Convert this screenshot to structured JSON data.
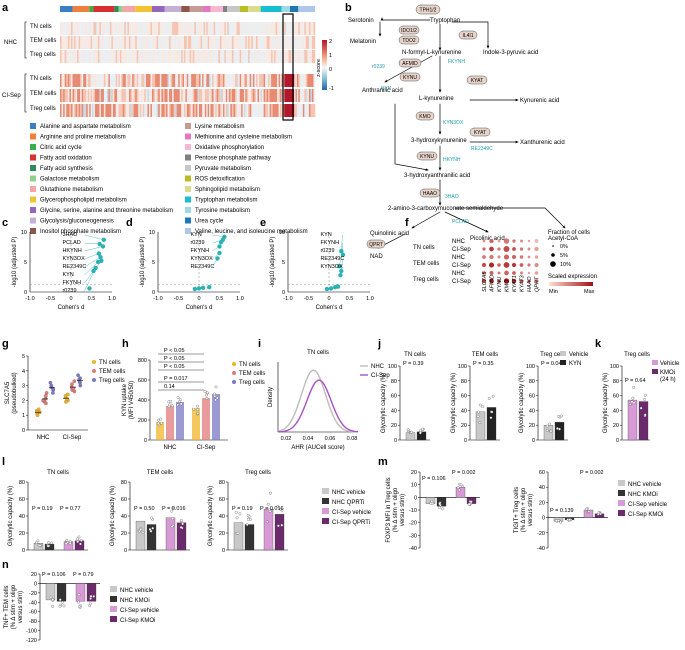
{
  "figure": {
    "panel_letters": [
      "a",
      "b",
      "c",
      "d",
      "e",
      "f",
      "g",
      "h",
      "i",
      "j",
      "k",
      "l",
      "m",
      "n"
    ]
  },
  "panel_a": {
    "row_groups": [
      {
        "name": "NHC",
        "rows": [
          "TN cells",
          "TEM cells",
          "Treg cells"
        ]
      },
      {
        "name": "CI-Sep",
        "rows": [
          "TN cells",
          "TEM cells",
          "Treg cells"
        ]
      }
    ],
    "colorbar_title": "z-score",
    "colorbar_ticks": [
      "2",
      "1",
      "0",
      "-1"
    ],
    "pathways": [
      {
        "label": "Alanine and aspartate metabolism",
        "color": "#3b7fc4"
      },
      {
        "label": "Arginine and proline metabolism",
        "color": "#f0803c"
      },
      {
        "label": "Citric acid cycle",
        "color": "#3cae4b"
      },
      {
        "label": "Fatty acid oxidation",
        "color": "#d7302f"
      },
      {
        "label": "Fatty acid synthesis",
        "color": "#2f8b57"
      },
      {
        "label": "Galactose metabolism",
        "color": "#8fd18a"
      },
      {
        "label": "Glutathione metabolism",
        "color": "#f4a6a6"
      },
      {
        "label": "Glycerophospholipid metabolism",
        "color": "#f1c232"
      },
      {
        "label": "Glycine, serine, alanine and threonine metabolism",
        "color": "#9467bd"
      },
      {
        "label": "Glycolysis/gluconeogenesis",
        "color": "#c5b0d5"
      },
      {
        "label": "Inositol phosphate metabolism",
        "color": "#8c564b"
      },
      {
        "label": "Lysine metabolism",
        "color": "#c49c94"
      },
      {
        "label": "Methionine and cysteine metabolism",
        "color": "#e377c2"
      },
      {
        "label": "Oxidative phosphorylation",
        "color": "#f7b6d2"
      },
      {
        "label": "Pentose phosphate pathway",
        "color": "#7f7f7f"
      },
      {
        "label": "Pyruvate metabolism",
        "color": "#c7c7c7"
      },
      {
        "label": "ROS detoxification",
        "color": "#bcbd22"
      },
      {
        "label": "Sphingolipid metabolism",
        "color": "#dbdb8d"
      },
      {
        "label": "Tryptophan metabolism",
        "color": "#17becf"
      },
      {
        "label": "Tyrosine metabolism",
        "color": "#9edae5"
      },
      {
        "label": "Urea cycle",
        "color": "#1f77b4"
      },
      {
        "label": "Valine, leucine, and isoleucine metabolism",
        "color": "#aec7e8"
      }
    ]
  },
  "panel_b": {
    "metabolites": {
      "serotonin": "Serotonin",
      "melatonin": "Melatonin",
      "tryptophan": "Tryptophan",
      "nfk": "N-formyl-L-kynurenine",
      "ipa": "Indole-3-pyruvic acid",
      "anthranilic": "Anthranilic acid",
      "kyn": "L-kynurenine",
      "kyna": "Kynurenic acid",
      "hk": "3-hydroxykynurenine",
      "xa": "Xanthurenic acid",
      "haa": "3-hydroxyanthranilic acid",
      "acms": "2-amino-3-carboxymuconate semialdehyde",
      "quin": "Quinolinic acid",
      "nad": "NAD",
      "pic": "Picolinic acid",
      "acoa": "Acetyl-CoA"
    },
    "enzymes": {
      "tph": "TPH1/2",
      "ido": "IDO1/2",
      "tdo": "TDO2",
      "il4i1": "IL4I1",
      "afmid": "AFMID",
      "kynu1": "KYNU",
      "kat": "KYAT",
      "kmo": "KMO",
      "kat2": "KYAT",
      "kynu2": "KYNU",
      "haao": "HAAO",
      "qprt": "QPRT"
    },
    "reaction_labels": {
      "r0239": "r0239",
      "fkynh": "FKYNH",
      "kyn": "KYN",
      "kyn3ox": "KYN3OX",
      "re2349c": "RE2349C",
      "hkynh": "HKYNH",
      "haao": "3HAO",
      "pclad": "PCLAD"
    }
  },
  "volcano_axes": {
    "xlabel": "Cohen's d",
    "ylabel": "-log10 (adjusted P)"
  },
  "chart_data": [
    {
      "id": "c",
      "type": "scatter",
      "xlabel": "Cohen's d",
      "ylabel": "-log10 (adjusted P)",
      "xlim": [
        -1.0,
        1.0
      ],
      "ylim": [
        0,
        10
      ],
      "xticks": [
        "-1.0",
        "-0.5",
        "0",
        "0.5",
        "1.0"
      ],
      "yticks": [
        "0",
        "5",
        "10"
      ],
      "points": [
        {
          "x": 0.8,
          "y": 8.7,
          "label": "3HAO"
        },
        {
          "x": 0.7,
          "y": 8.0,
          "label": "PCLAD"
        },
        {
          "x": 0.78,
          "y": 7.6,
          "label": "HKYNH"
        },
        {
          "x": 0.68,
          "y": 6.4,
          "label": "KYN3OX"
        },
        {
          "x": 0.72,
          "y": 5.8,
          "label": "RE2349C"
        },
        {
          "x": 0.66,
          "y": 5.0,
          "label": "KYN"
        },
        {
          "x": 0.74,
          "y": 5.2,
          "label": "FKYNH"
        },
        {
          "x": 0.6,
          "y": 4.0,
          "label": "r0239"
        },
        {
          "x": 0.55,
          "y": 3.5,
          "label": ""
        },
        {
          "x": 0.45,
          "y": 0.6,
          "label": ""
        }
      ]
    },
    {
      "id": "d",
      "type": "scatter",
      "xlabel": "Cohen's d",
      "ylabel": "-log10 (adjusted P)",
      "xlim": [
        -1.0,
        1.0
      ],
      "ylim": [
        0,
        10
      ],
      "xticks": [
        "-1.0",
        "-0.5",
        "0",
        "0.5",
        "1.0"
      ],
      "yticks": [
        "0",
        "5",
        "10"
      ],
      "points": [
        {
          "x": 0.62,
          "y": 9.2,
          "label": "KYN"
        },
        {
          "x": 0.58,
          "y": 8.7,
          "label": "r0239"
        },
        {
          "x": 0.54,
          "y": 8.3,
          "label": ""
        },
        {
          "x": 0.5,
          "y": 7.6,
          "label": "FKYNH"
        },
        {
          "x": 0.5,
          "y": 6.5,
          "label": "KYN3OX"
        },
        {
          "x": 0.45,
          "y": 5.6,
          "label": "RE2349C"
        },
        {
          "x": 0.0,
          "y": 0.6,
          "label": ""
        },
        {
          "x": 0.1,
          "y": 0.7,
          "label": ""
        },
        {
          "x": -0.1,
          "y": 0.5,
          "label": ""
        },
        {
          "x": 0.25,
          "y": 0.8,
          "label": ""
        }
      ]
    },
    {
      "id": "e",
      "type": "scatter",
      "xlabel": "Cohen's d",
      "ylabel": "-log10 (adjusted P)",
      "xlim": [
        -1.0,
        1.0
      ],
      "ylim": [
        0,
        10
      ],
      "xticks": [
        "-1.0",
        "-0.5",
        "0",
        "0.5",
        "1.0"
      ],
      "yticks": [
        "0",
        "5",
        "10"
      ],
      "points": [
        {
          "x": 0.3,
          "y": 6.8,
          "label": "KYN"
        },
        {
          "x": 0.34,
          "y": 6.2,
          "label": "FKYNH"
        },
        {
          "x": 0.25,
          "y": 4.3,
          "label": "r0239"
        },
        {
          "x": 0.3,
          "y": 3.5,
          "label": "RE2349C"
        },
        {
          "x": 0.28,
          "y": 2.8,
          "label": "KYN3OX"
        },
        {
          "x": -0.05,
          "y": 0.5,
          "label": ""
        },
        {
          "x": 0.05,
          "y": 0.6,
          "label": ""
        },
        {
          "x": 0.15,
          "y": 0.8,
          "label": ""
        },
        {
          "x": 0.22,
          "y": 0.9,
          "label": ""
        }
      ]
    },
    {
      "id": "g",
      "type": "scatter",
      "ylabel": "SLC7A5 (pseudobulked)",
      "yticks": [
        "0",
        "1",
        "2",
        "3",
        "4",
        "5"
      ],
      "ylim": [
        0,
        5
      ],
      "categories": [
        "NHC",
        "CI-Sep"
      ],
      "series": [
        {
          "name": "TN cells",
          "color": "#f0b429",
          "values_nhc": [
            1.1,
            1.3,
            1.2,
            1.0,
            1.4,
            1.2
          ],
          "values_sep": [
            2.0,
            2.2,
            2.3,
            1.9,
            2.4,
            2.1
          ]
        },
        {
          "name": "TEM cells",
          "color": "#e07b7b",
          "values_nhc": [
            1.9,
            2.1,
            2.3,
            2.0,
            2.5,
            1.8
          ],
          "values_sep": [
            2.6,
            2.9,
            3.1,
            2.7,
            3.3,
            2.8
          ]
        },
        {
          "name": "Treg cells",
          "color": "#7b78c4",
          "values_nhc": [
            2.7,
            2.9,
            3.0,
            2.5,
            3.2,
            2.8
          ],
          "values_sep": [
            3.2,
            3.5,
            3.4,
            3.0,
            3.7,
            3.3
          ]
        }
      ]
    },
    {
      "id": "h",
      "type": "bar",
      "ylabel": "KYN uptake (MFI V450/50)",
      "yticks": [
        "0",
        "200",
        "400",
        "600",
        "800"
      ],
      "ylim": [
        0,
        800
      ],
      "categories": [
        "NHC",
        "CI-Sep"
      ],
      "series": [
        {
          "name": "TN cells",
          "color": "#f0b429",
          "values": [
            180,
            320
          ]
        },
        {
          "name": "TEM cells",
          "color": "#e07b7b",
          "values": [
            340,
            420
          ]
        },
        {
          "name": "Treg cells",
          "color": "#7b78c4",
          "values": [
            380,
            460
          ]
        }
      ],
      "annotations": [
        "P < 0.05",
        "P < 0.05",
        "P < 0.05",
        "P = 0.017",
        "0.14"
      ]
    },
    {
      "id": "i",
      "type": "area",
      "title": "TN cells",
      "xlabel": "AHR (AUCell score)",
      "ylabel": "Density",
      "xticks": [
        "0.02",
        "0.04",
        "0.06",
        "0.08"
      ],
      "series": [
        {
          "name": "NHC",
          "color": "#bdbdbd",
          "peak": 0.045
        },
        {
          "name": "CI-Sep",
          "color": "#a653c2",
          "peak": 0.05
        }
      ]
    },
    {
      "id": "j",
      "type": "bar",
      "ylabel": "Glycolytic capacity (%)",
      "subplots": [
        {
          "title": "TN cells",
          "yticks": [
            "0",
            "20",
            "40",
            "60",
            "80",
            "100"
          ],
          "values": {
            "Vehicle": 10,
            "KYN": 11
          },
          "p": "P = 0.39"
        },
        {
          "title": "TEM cells",
          "yticks": [
            "0",
            "20",
            "40",
            "60",
            "80",
            "100"
          ],
          "values": {
            "Vehicle": 38,
            "KYN": 44
          },
          "p": "P = 0.35"
        },
        {
          "title": "Treg cells",
          "yticks": [
            "0",
            "20",
            "40",
            "60",
            "80",
            "100"
          ],
          "values": {
            "Vehicle": 20,
            "KYN": 24
          },
          "p": "P = 0.049"
        }
      ],
      "legend": [
        "Vehicle",
        "KYN"
      ]
    },
    {
      "id": "k",
      "type": "bar",
      "title": "Treg cells",
      "ylabel": "Glycolytic capacity (%)",
      "yticks": [
        "0",
        "20",
        "40",
        "60",
        "80",
        "100"
      ],
      "values": {
        "Vehicle": 54,
        "KMOi (24 h)": 52
      },
      "p": "P = 0.64",
      "legend": [
        "Vehicle",
        "KMOi",
        "(24 h)"
      ]
    },
    {
      "id": "l",
      "type": "bar",
      "ylabel": "Glycolytic capacity (%)",
      "subplots": [
        {
          "title": "TN cells",
          "yticks": [
            "0",
            "20",
            "40",
            "60",
            "80"
          ],
          "values": [
            8,
            7,
            10,
            11
          ],
          "p": [
            "P = 0.19",
            "P = 0.77"
          ]
        },
        {
          "title": "TEM cells",
          "yticks": [
            "0",
            "20",
            "40",
            "60",
            "80"
          ],
          "values": [
            34,
            30,
            38,
            32
          ],
          "p": [
            "P = 0.50",
            "P = 0.016"
          ]
        },
        {
          "title": "Treg cells",
          "yticks": [
            "0",
            "20",
            "40",
            "60",
            "80"
          ],
          "values": [
            32,
            30,
            48,
            42
          ],
          "p": [
            "P = 0.19",
            "P = 0.016"
          ]
        }
      ],
      "legend": [
        "NHC vehicle",
        "NHC QPRTi",
        "CI-Sep vehicle",
        "CI-Sep QPRTi"
      ]
    },
    {
      "id": "m",
      "type": "bar",
      "subplots": [
        {
          "ylabel": "FOXP3 MFI in Treg cells (% Δ stim + oligo versus stim)",
          "yticks": [
            "-40",
            "-30",
            "-20",
            "-10",
            "0",
            "10",
            "20"
          ],
          "values": [
            -5,
            -7,
            8,
            -5
          ],
          "p": [
            "P = 0.106",
            "P = 0.002"
          ]
        },
        {
          "ylabel": "TIGIT+ Treg cells (% Δ stim + oligo versus stim)",
          "yticks": [
            "-40",
            "-20",
            "0",
            "20",
            "40",
            "60"
          ],
          "values": [
            -5,
            -3,
            10,
            5
          ],
          "p": [
            "P = 0.139",
            "P = 0.002"
          ]
        }
      ],
      "legend": [
        "NHC vehicle",
        "NHC KMOi",
        "CI-Sep vehicle",
        "CI-Sep KMOi"
      ]
    },
    {
      "id": "n",
      "type": "bar",
      "ylabel": "TNF+ TEM cells (% Δ stim + oligo versus stim)",
      "yticks": [
        "-120",
        "-100",
        "-80",
        "-60",
        "-40",
        "-20",
        "0",
        "20"
      ],
      "values": [
        -35,
        -38,
        -38,
        -38
      ],
      "p": [
        "P = 0.106",
        "P = 0.79"
      ],
      "legend": [
        "NHC vehicle",
        "NHC KMOi",
        "CI-Sep vehicle",
        "CI-Sep KMOi"
      ]
    }
  ],
  "panel_f": {
    "col_labels": [
      "SLC7A5",
      "AFMID",
      "KYNU",
      "KMO",
      "KYAT1",
      "KYAT3",
      "HAAO",
      "QPRT"
    ],
    "row_groups": [
      {
        "name": "TN cells",
        "rows": [
          "NHC",
          "CI-Sep"
        ]
      },
      {
        "name": "TEM cells",
        "rows": [
          "NHC",
          "CI-Sep"
        ]
      },
      {
        "name": "Treg cells",
        "rows": [
          "NHC",
          "CI-Sep"
        ]
      }
    ],
    "size_title": "Fraction of cells",
    "size_labels": [
      "0%",
      "5%",
      "10%"
    ],
    "color_title": "Scaled expression",
    "color_min": "Min",
    "color_max": "Max",
    "dots": [
      [
        0.25,
        0.6,
        0.3,
        0.9,
        0.4,
        0.3,
        0.2,
        0.5
      ],
      [
        0.35,
        0.7,
        0.4,
        1.0,
        0.5,
        0.4,
        0.3,
        0.6
      ],
      [
        0.5,
        0.6,
        0.35,
        0.8,
        0.55,
        0.45,
        0.25,
        0.4
      ],
      [
        0.6,
        0.8,
        0.45,
        0.95,
        0.6,
        0.5,
        0.35,
        0.55
      ],
      [
        0.45,
        0.55,
        0.3,
        0.7,
        0.5,
        0.35,
        0.2,
        0.45
      ],
      [
        0.55,
        0.7,
        0.4,
        0.85,
        0.65,
        0.45,
        0.3,
        0.5
      ]
    ],
    "intensity": [
      [
        0.4,
        0.6,
        0.3,
        0.5,
        0.5,
        0.4,
        0.3,
        0.2
      ],
      [
        0.6,
        0.8,
        0.5,
        0.7,
        0.7,
        0.5,
        0.4,
        0.3
      ],
      [
        0.5,
        0.5,
        0.4,
        0.6,
        0.6,
        0.5,
        0.4,
        0.3
      ],
      [
        0.7,
        0.9,
        0.6,
        0.8,
        0.8,
        0.6,
        0.5,
        0.4
      ],
      [
        0.5,
        0.6,
        0.5,
        0.6,
        0.6,
        0.4,
        0.3,
        0.3
      ],
      [
        0.8,
        0.9,
        0.7,
        1.0,
        0.9,
        0.7,
        0.6,
        0.5
      ]
    ]
  },
  "labels": {
    "g_legend": [
      "TN cells",
      "TEM cells",
      "Treg cells"
    ],
    "h_legend": [
      "TN cells",
      "TEM cells",
      "Treg cells"
    ],
    "i_legend": [
      "NHC",
      "CI-Sep"
    ],
    "groups": [
      "NHC",
      "CI-Sep"
    ]
  }
}
